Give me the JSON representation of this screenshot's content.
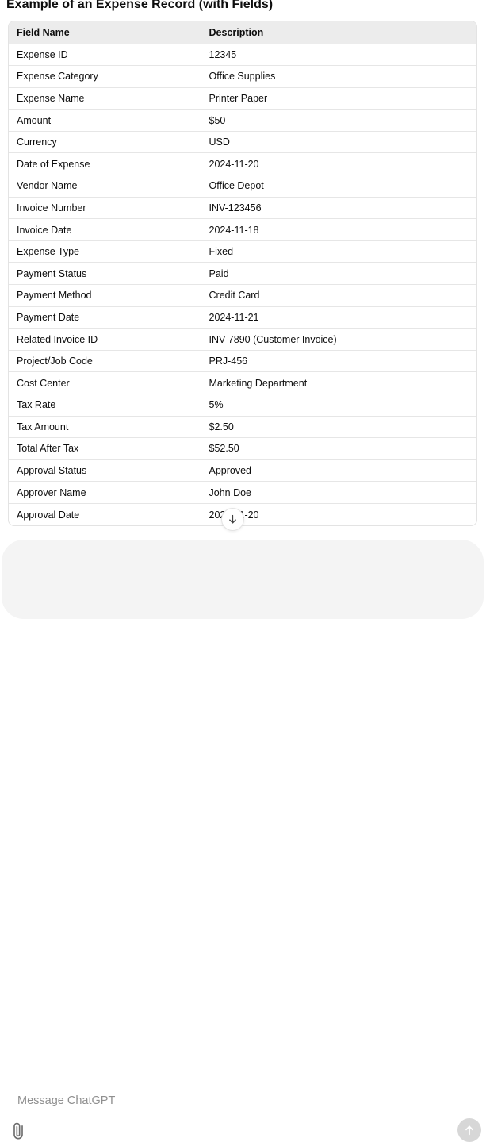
{
  "title": "Example of an Expense Record (with Fields)",
  "table": {
    "headers": [
      "Field Name",
      "Description"
    ],
    "rows": [
      [
        "Expense ID",
        "12345"
      ],
      [
        "Expense Category",
        "Office Supplies"
      ],
      [
        "Expense Name",
        "Printer Paper"
      ],
      [
        "Amount",
        "$50"
      ],
      [
        "Currency",
        "USD"
      ],
      [
        "Date of Expense",
        "2024-11-20"
      ],
      [
        "Vendor Name",
        "Office Depot"
      ],
      [
        "Invoice Number",
        "INV-123456"
      ],
      [
        "Invoice Date",
        "2024-11-18"
      ],
      [
        "Expense Type",
        "Fixed"
      ],
      [
        "Payment Status",
        "Paid"
      ],
      [
        "Payment Method",
        "Credit Card"
      ],
      [
        "Payment Date",
        "2024-11-21"
      ],
      [
        "Related Invoice ID",
        "INV-7890 (Customer Invoice)"
      ],
      [
        "Project/Job Code",
        "PRJ-456"
      ],
      [
        "Cost Center",
        "Marketing Department"
      ],
      [
        "Tax Rate",
        "5%"
      ],
      [
        "Tax Amount",
        "$2.50"
      ],
      [
        "Total After Tax",
        "$52.50"
      ],
      [
        "Approval Status",
        "Approved"
      ],
      [
        "Approver Name",
        "John Doe"
      ],
      [
        "Approval Date",
        "2024-11-20"
      ]
    ]
  },
  "composer": {
    "placeholder": "Message ChatGPT"
  },
  "icons": {
    "scroll_down": "arrow-down-icon",
    "attach": "paperclip-icon",
    "send": "arrow-up-icon"
  },
  "colors": {
    "table_header_bg": "#ececec",
    "table_border": "#e3e3e3",
    "row_border": "#e6e6e6",
    "text": "#0d0d0d",
    "composer_bg": "#f4f4f4",
    "placeholder": "#8f8f8f",
    "send_button_bg": "#d7d7d7",
    "send_arrow": "#ffffff",
    "icon_gray": "#6e6e6e"
  }
}
